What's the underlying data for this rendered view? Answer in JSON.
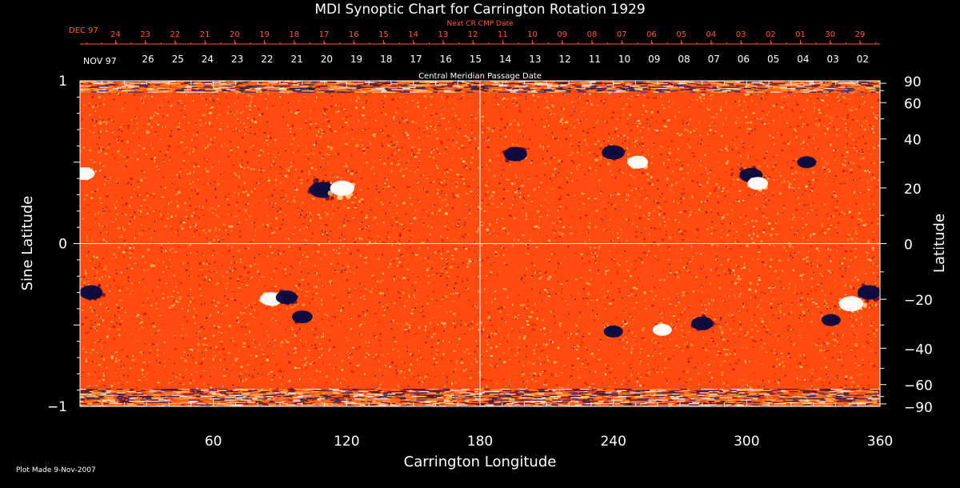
{
  "chart_data": {
    "type": "heatmap",
    "title": "MDI Synoptic Chart for Carrington Rotation 1929",
    "xlabel": "Carrington Longitude",
    "ylabel_left": "Sine Latitude",
    "ylabel_right": "Latitude",
    "xlim": [
      0,
      360
    ],
    "ylim": [
      -1,
      1
    ],
    "x_ticks": [
      60,
      120,
      180,
      240,
      300,
      360
    ],
    "y_ticks_left": [
      {
        "value": 1,
        "label": "1"
      },
      {
        "value": 0,
        "label": "0"
      },
      {
        "value": -1,
        "label": "−1"
      }
    ],
    "y_ticks_right": [
      {
        "deg": 90,
        "label": "90"
      },
      {
        "deg": 60,
        "label": "60"
      },
      {
        "deg": 40,
        "label": "40"
      },
      {
        "deg": 20,
        "label": "20"
      },
      {
        "deg": 0,
        "label": "0"
      },
      {
        "deg": -20,
        "label": "−20"
      },
      {
        "deg": -40,
        "label": "−40"
      },
      {
        "deg": -60,
        "label": "−60"
      },
      {
        "deg": -90,
        "label": "−90"
      }
    ],
    "grid_lines": {
      "longitude": 180,
      "sine_latitude": 0
    },
    "next_cr_axis": {
      "label": "Next CR CMP Date",
      "month_label": "DEC 97",
      "color": "#ff5a2a",
      "ticks": [
        {
          "lon": 16.0,
          "label": "24"
        },
        {
          "lon": 29.4,
          "label": "23"
        },
        {
          "lon": 42.8,
          "label": "22"
        },
        {
          "lon": 56.2,
          "label": "21"
        },
        {
          "lon": 69.6,
          "label": "20"
        },
        {
          "lon": 83.0,
          "label": "19"
        },
        {
          "lon": 96.4,
          "label": "18"
        },
        {
          "lon": 109.8,
          "label": "17"
        },
        {
          "lon": 123.2,
          "label": "16"
        },
        {
          "lon": 136.6,
          "label": "15"
        },
        {
          "lon": 150.0,
          "label": "14"
        },
        {
          "lon": 163.4,
          "label": "13"
        },
        {
          "lon": 176.8,
          "label": "12"
        },
        {
          "lon": 190.2,
          "label": "11"
        },
        {
          "lon": 203.6,
          "label": "10"
        },
        {
          "lon": 217.0,
          "label": "09"
        },
        {
          "lon": 230.4,
          "label": "08"
        },
        {
          "lon": 243.8,
          "label": "07"
        },
        {
          "lon": 257.2,
          "label": "06"
        },
        {
          "lon": 270.6,
          "label": "05"
        },
        {
          "lon": 284.0,
          "label": "04"
        },
        {
          "lon": 297.4,
          "label": "03"
        },
        {
          "lon": 310.8,
          "label": "02"
        },
        {
          "lon": 324.2,
          "label": "01"
        },
        {
          "lon": 337.6,
          "label": "30"
        },
        {
          "lon": 351.0,
          "label": "29"
        }
      ]
    },
    "cmp_axis": {
      "label": "Central Meridian Passage Date",
      "month_label": "NOV 97",
      "color": "#ffffff",
      "ticks": [
        {
          "lon": 30.6,
          "label": "26"
        },
        {
          "lon": 44.0,
          "label": "25"
        },
        {
          "lon": 57.4,
          "label": "24"
        },
        {
          "lon": 70.8,
          "label": "23"
        },
        {
          "lon": 84.2,
          "label": "22"
        },
        {
          "lon": 97.6,
          "label": "21"
        },
        {
          "lon": 111.0,
          "label": "20"
        },
        {
          "lon": 124.4,
          "label": "19"
        },
        {
          "lon": 137.8,
          "label": "18"
        },
        {
          "lon": 151.2,
          "label": "17"
        },
        {
          "lon": 164.6,
          "label": "16"
        },
        {
          "lon": 178.0,
          "label": "15"
        },
        {
          "lon": 191.4,
          "label": "14"
        },
        {
          "lon": 204.8,
          "label": "13"
        },
        {
          "lon": 218.2,
          "label": "12"
        },
        {
          "lon": 231.6,
          "label": "11"
        },
        {
          "lon": 245.0,
          "label": "10"
        },
        {
          "lon": 258.4,
          "label": "09"
        },
        {
          "lon": 271.8,
          "label": "08"
        },
        {
          "lon": 285.2,
          "label": "07"
        },
        {
          "lon": 298.6,
          "label": "06"
        },
        {
          "lon": 312.0,
          "label": "05"
        },
        {
          "lon": 325.4,
          "label": "04"
        },
        {
          "lon": 338.8,
          "label": "03"
        },
        {
          "lon": 352.2,
          "label": "02"
        }
      ]
    },
    "colors": {
      "background": "#000000",
      "field_base": "#ff4a10",
      "positive_polarity": "#ffffff",
      "negative_polarity": "#0a0a40",
      "grid": "#ffffff"
    },
    "active_regions": [
      {
        "lon": 109,
        "sinlat": 0.33,
        "polarity": "negative",
        "strength": 1.0
      },
      {
        "lon": 118,
        "sinlat": 0.34,
        "polarity": "positive",
        "strength": 0.9
      },
      {
        "lon": 2,
        "sinlat": 0.43,
        "polarity": "positive",
        "strength": 0.6
      },
      {
        "lon": 196,
        "sinlat": 0.55,
        "polarity": "negative",
        "strength": 0.8
      },
      {
        "lon": 240,
        "sinlat": 0.56,
        "polarity": "negative",
        "strength": 0.8
      },
      {
        "lon": 251,
        "sinlat": 0.5,
        "polarity": "positive",
        "strength": 0.6
      },
      {
        "lon": 302,
        "sinlat": 0.42,
        "polarity": "negative",
        "strength": 0.8
      },
      {
        "lon": 305,
        "sinlat": 0.37,
        "polarity": "positive",
        "strength": 0.6
      },
      {
        "lon": 327,
        "sinlat": 0.5,
        "polarity": "negative",
        "strength": 0.5
      },
      {
        "lon": 5,
        "sinlat": -0.3,
        "polarity": "negative",
        "strength": 0.8
      },
      {
        "lon": 86,
        "sinlat": -0.34,
        "polarity": "positive",
        "strength": 0.7
      },
      {
        "lon": 93,
        "sinlat": -0.33,
        "polarity": "negative",
        "strength": 0.7
      },
      {
        "lon": 100,
        "sinlat": -0.45,
        "polarity": "negative",
        "strength": 0.6
      },
      {
        "lon": 240,
        "sinlat": -0.54,
        "polarity": "negative",
        "strength": 0.5
      },
      {
        "lon": 280,
        "sinlat": -0.49,
        "polarity": "negative",
        "strength": 0.7
      },
      {
        "lon": 262,
        "sinlat": -0.53,
        "polarity": "positive",
        "strength": 0.5
      },
      {
        "lon": 347,
        "sinlat": -0.37,
        "polarity": "positive",
        "strength": 0.9
      },
      {
        "lon": 355,
        "sinlat": -0.3,
        "polarity": "negative",
        "strength": 0.8
      },
      {
        "lon": 338,
        "sinlat": -0.47,
        "polarity": "negative",
        "strength": 0.5
      }
    ]
  },
  "footer": {
    "plot_made": "Plot Made  9-Nov-2007"
  }
}
